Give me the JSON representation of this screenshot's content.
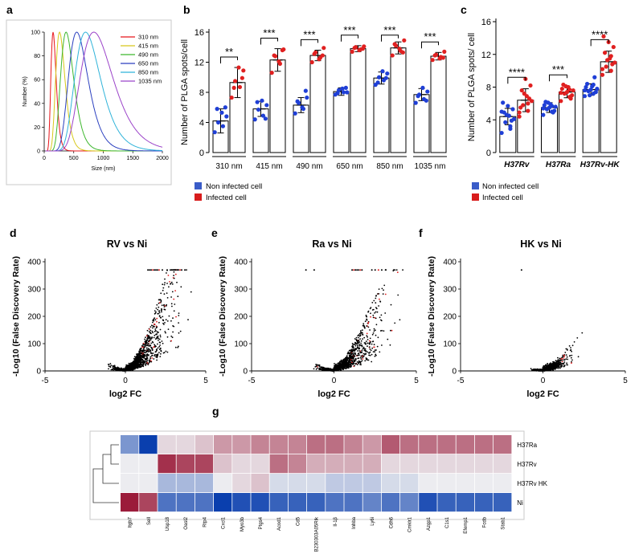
{
  "panels": {
    "a": "a",
    "b": "b",
    "c": "c",
    "d": "d",
    "e": "e",
    "f": "f",
    "g": "g"
  },
  "colors": {
    "non_infected": "#1f3fd6",
    "infected": "#e02020",
    "heat_high": "#9b1b3a",
    "heat_low": "#0a3fae"
  },
  "chart_data": [
    {
      "id": "a",
      "type": "line",
      "title": "",
      "xlabel": "Size (nm)",
      "ylabel": "Number (%)",
      "xlim": [
        0,
        2000
      ],
      "ylim": [
        0,
        100
      ],
      "xticks": [
        "0",
        "500",
        "1000",
        "1500",
        "2000"
      ],
      "yticks": [
        "0",
        "20",
        "40",
        "60",
        "80",
        "100"
      ],
      "series": [
        {
          "name": "310 nm",
          "peak": 150,
          "width": 0.3,
          "color": "#e8141a"
        },
        {
          "name": "415 nm",
          "peak": 260,
          "width": 0.3,
          "color": "#d7c81a"
        },
        {
          "name": "490 nm",
          "peak": 370,
          "width": 0.3,
          "color": "#3db72e"
        },
        {
          "name": "650 nm",
          "peak": 550,
          "width": 0.3,
          "color": "#2a3fbf"
        },
        {
          "name": "850 nm",
          "peak": 700,
          "width": 0.31,
          "color": "#2fb3d9"
        },
        {
          "name": "1035 nm",
          "peak": 840,
          "width": 0.33,
          "color": "#9b43c9"
        }
      ]
    },
    {
      "id": "b",
      "type": "bar",
      "ylabel": "Number of PLGA spots/cell",
      "ylim": [
        0,
        16
      ],
      "yticks": [
        "0",
        "4",
        "8",
        "12",
        "16"
      ],
      "categories": [
        "310 nm",
        "415 nm",
        "490 nm",
        "650 nm",
        "850 nm",
        "1035 nm"
      ],
      "significance": [
        "**",
        "***",
        "***",
        "***",
        "***",
        "***"
      ],
      "series": [
        {
          "name": "Non infected cell",
          "values": [
            4.2,
            5.8,
            6.3,
            8.1,
            9.9,
            7.7
          ],
          "errors": [
            1.6,
            1.0,
            1.0,
            0.5,
            0.8,
            0.8
          ],
          "points": [
            [
              2.7,
              3.5,
              4.0,
              4.8,
              5.3,
              5.8,
              6.0
            ],
            [
              4.4,
              4.9,
              5.7,
              6.3,
              6.9,
              6.7,
              4.5
            ],
            [
              5.2,
              5.8,
              6.6,
              7.3,
              6.0,
              6.8,
              8.2
            ],
            [
              7.7,
              8.0,
              8.3,
              8.0,
              8.5,
              7.9,
              8.6
            ],
            [
              9.0,
              9.6,
              10.0,
              10.5,
              10.8,
              9.3,
              9.9
            ],
            [
              6.6,
              7.1,
              7.7,
              8.1,
              8.6,
              7.5,
              6.9
            ]
          ]
        },
        {
          "name": "Infected cell",
          "values": [
            9.3,
            12.3,
            12.9,
            13.8,
            13.9,
            12.8
          ],
          "errors": [
            2.0,
            1.5,
            0.7,
            0.4,
            0.8,
            0.5
          ],
          "points": [
            [
              7.3,
              8.7,
              9.5,
              10.9,
              11.3,
              8.6,
              9.9
            ],
            [
              10.6,
              11.8,
              12.8,
              13.7,
              12.1,
              12.9,
              13.6
            ],
            [
              12.0,
              12.6,
              13.3,
              13.9,
              12.4,
              13.1,
              12.9
            ],
            [
              13.4,
              13.7,
              14.0,
              14.1,
              13.6,
              13.9,
              13.8
            ],
            [
              12.9,
              13.5,
              14.2,
              14.9,
              13.8,
              14.4,
              13.3
            ],
            [
              12.3,
              12.7,
              13.0,
              13.4,
              12.5,
              12.9,
              12.6
            ]
          ]
        }
      ]
    },
    {
      "id": "c",
      "type": "bar",
      "ylabel": "Number of PLGA spots/ cell",
      "ylim": [
        0,
        16
      ],
      "yticks": [
        "0",
        "4",
        "8",
        "12",
        "16"
      ],
      "categories": [
        "H37Rv",
        "H37Ra",
        "H37Rv-HK"
      ],
      "significance": [
        "****",
        "***",
        "****"
      ],
      "series": [
        {
          "name": "Non infected cell",
          "values": [
            4.4,
            5.5,
            7.7
          ],
          "errors": [
            1.0,
            0.6,
            0.7
          ],
          "points": [
            [
              2.4,
              3.2,
              3.7,
              4.1,
              4.5,
              4.9,
              5.3,
              5.7,
              6.1,
              3.9,
              4.6,
              5.0,
              2.9
            ],
            [
              4.6,
              5.0,
              5.3,
              5.6,
              5.9,
              6.2,
              5.1,
              5.5,
              5.8,
              4.9,
              6.1,
              5.4,
              5.7
            ],
            [
              6.9,
              7.2,
              7.5,
              7.8,
              8.1,
              8.4,
              7.4,
              7.7,
              8.0,
              9.2,
              7.0,
              7.6,
              8.3
            ]
          ]
        },
        {
          "name": "Infected cell",
          "values": [
            6.4,
            7.4,
            11.1
          ],
          "errors": [
            1.4,
            0.7,
            1.3
          ],
          "points": [
            [
              4.4,
              5.1,
              5.8,
              6.3,
              6.9,
              7.6,
              8.2,
              9.0,
              5.5,
              6.6,
              7.2,
              4.9,
              6.0
            ],
            [
              6.3,
              6.8,
              7.2,
              7.6,
              8.0,
              8.3,
              7.0,
              7.4,
              7.8,
              6.6,
              8.1,
              7.3,
              7.7
            ],
            [
              9.5,
              10.0,
              10.5,
              11.0,
              11.5,
              12.2,
              12.9,
              13.5,
              14.2,
              10.8,
              11.3,
              10.2,
              11.8
            ]
          ]
        }
      ]
    },
    {
      "id": "d",
      "type": "scatter",
      "title": "RV vs Ni",
      "xlabel": "log2 FC",
      "ylabel": "-Log10 (False  Discovery Rate)",
      "xlim": [
        -5,
        5
      ],
      "ylim": [
        0,
        400
      ],
      "xticks": [
        "-5",
        "0",
        "5"
      ],
      "yticks": [
        "0",
        "100",
        "200",
        "300",
        "400"
      ]
    },
    {
      "id": "e",
      "type": "scatter",
      "title": "Ra vs Ni",
      "xlabel": "log2 FC",
      "ylabel": "-Log10 (False  Discovery Rate)",
      "xlim": [
        -5,
        5
      ],
      "ylim": [
        0,
        400
      ],
      "xticks": [
        "-5",
        "0",
        "5"
      ],
      "yticks": [
        "0",
        "100",
        "200",
        "300",
        "400"
      ]
    },
    {
      "id": "f",
      "type": "scatter",
      "title": "HK vs Ni",
      "xlabel": "log2 FC",
      "ylabel": "-Log10 (False  Discovery Rate)",
      "xlim": [
        -5,
        5
      ],
      "ylim": [
        0,
        400
      ],
      "xticks": [
        "-5",
        "0",
        "5"
      ],
      "yticks": [
        "0",
        "100",
        "200",
        "300",
        "400"
      ]
    },
    {
      "id": "g",
      "type": "heatmap",
      "rows": [
        "H37Ra",
        "H37Rv",
        "H37Rv HK",
        "Ni"
      ],
      "columns": [
        "Itgb7",
        "Sell",
        "Usp18",
        "Oasl2",
        "Rtp4",
        "Cxcl1",
        "Myo3b",
        "Ptgs4",
        "Acod1",
        "Cd5",
        "B230303A05Rik",
        "Il-1β",
        "Inhba",
        "Ly6i",
        "Cdh6",
        "Cmklr1",
        "Azgp1",
        "C1s1",
        "Efemp1",
        "Fcdb",
        "Stab1"
      ],
      "values": [
        [
          -0.5,
          -1.0,
          0.1,
          0.1,
          0.2,
          0.4,
          0.4,
          0.5,
          0.5,
          0.5,
          0.6,
          0.6,
          0.5,
          0.4,
          0.7,
          0.6,
          0.6,
          0.6,
          0.6,
          0.6,
          0.6
        ],
        [
          0.0,
          0.0,
          0.9,
          0.8,
          0.8,
          0.2,
          0.1,
          0.1,
          0.6,
          0.5,
          0.3,
          0.3,
          0.3,
          0.3,
          0.1,
          0.1,
          0.1,
          0.1,
          0.1,
          0.1,
          0.1
        ],
        [
          0.0,
          0.0,
          -0.3,
          -0.3,
          -0.3,
          0.0,
          0.1,
          0.2,
          -0.1,
          -0.1,
          -0.1,
          -0.2,
          -0.2,
          -0.2,
          -0.1,
          -0.1,
          0.0,
          0.0,
          0.0,
          0.0,
          0.0
        ],
        [
          1.0,
          0.8,
          -0.7,
          -0.7,
          -0.7,
          -1.0,
          -0.9,
          -0.9,
          -0.8,
          -0.8,
          -0.8,
          -0.7,
          -0.7,
          -0.6,
          -0.7,
          -0.6,
          -0.9,
          -0.8,
          -0.8,
          -0.8,
          -0.8
        ]
      ]
    }
  ],
  "legend_b": {
    "non_infected": "Non infected cell",
    "infected": "Infected cell"
  },
  "legend_c": {
    "non_infected": "Non infected cell",
    "infected": "Infected cell"
  }
}
